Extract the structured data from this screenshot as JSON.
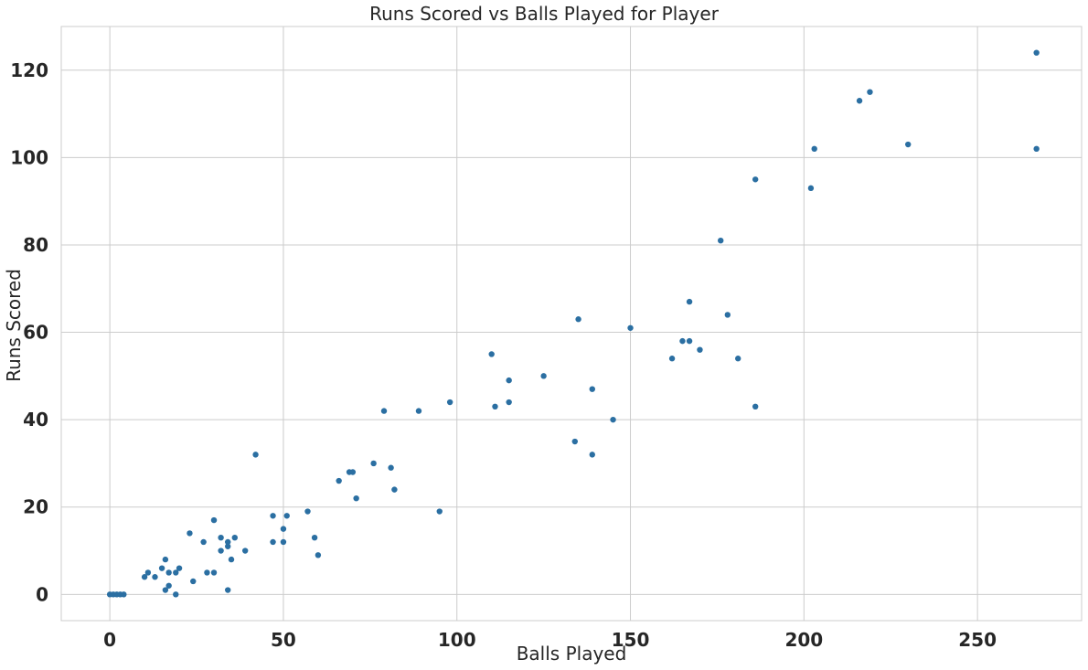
{
  "chart_data": {
    "type": "scatter",
    "title": "Runs Scored vs Balls Played for Player",
    "xlabel": "Balls Played",
    "ylabel": "Runs Scored",
    "xlim": [
      -14,
      280
    ],
    "ylim": [
      -6,
      130
    ],
    "xticks": [
      0,
      50,
      100,
      150,
      200,
      250
    ],
    "yticks": [
      0,
      20,
      40,
      60,
      80,
      100,
      120
    ],
    "grid": true,
    "legend": "none",
    "color": "#2b6fa2",
    "points": [
      [
        0,
        0
      ],
      [
        1,
        0
      ],
      [
        2,
        0
      ],
      [
        3,
        0
      ],
      [
        4,
        0
      ],
      [
        10,
        4
      ],
      [
        11,
        5
      ],
      [
        13,
        4
      ],
      [
        15,
        6
      ],
      [
        16,
        8
      ],
      [
        16,
        1
      ],
      [
        17,
        5
      ],
      [
        17,
        2
      ],
      [
        19,
        5
      ],
      [
        19,
        0
      ],
      [
        20,
        6
      ],
      [
        23,
        14
      ],
      [
        24,
        3
      ],
      [
        27,
        12
      ],
      [
        28,
        5
      ],
      [
        30,
        17
      ],
      [
        30,
        5
      ],
      [
        32,
        13
      ],
      [
        32,
        10
      ],
      [
        34,
        12
      ],
      [
        34,
        11
      ],
      [
        34,
        1
      ],
      [
        35,
        8
      ],
      [
        36,
        13
      ],
      [
        39,
        10
      ],
      [
        42,
        32
      ],
      [
        47,
        18
      ],
      [
        47,
        12
      ],
      [
        50,
        15
      ],
      [
        50,
        12
      ],
      [
        51,
        18
      ],
      [
        57,
        19
      ],
      [
        59,
        13
      ],
      [
        60,
        9
      ],
      [
        66,
        26
      ],
      [
        69,
        28
      ],
      [
        70,
        28
      ],
      [
        71,
        22
      ],
      [
        76,
        30
      ],
      [
        79,
        42
      ],
      [
        81,
        29
      ],
      [
        82,
        24
      ],
      [
        89,
        42
      ],
      [
        95,
        19
      ],
      [
        98,
        44
      ],
      [
        110,
        55
      ],
      [
        111,
        43
      ],
      [
        115,
        49
      ],
      [
        115,
        44
      ],
      [
        125,
        50
      ],
      [
        134,
        35
      ],
      [
        135,
        63
      ],
      [
        139,
        47
      ],
      [
        139,
        32
      ],
      [
        145,
        40
      ],
      [
        150,
        61
      ],
      [
        162,
        54
      ],
      [
        165,
        58
      ],
      [
        167,
        67
      ],
      [
        167,
        58
      ],
      [
        170,
        56
      ],
      [
        176,
        81
      ],
      [
        178,
        64
      ],
      [
        181,
        54
      ],
      [
        186,
        95
      ],
      [
        186,
        43
      ],
      [
        202,
        93
      ],
      [
        203,
        102
      ],
      [
        216,
        113
      ],
      [
        219,
        115
      ],
      [
        230,
        103
      ],
      [
        267,
        124
      ],
      [
        267,
        102
      ]
    ]
  }
}
